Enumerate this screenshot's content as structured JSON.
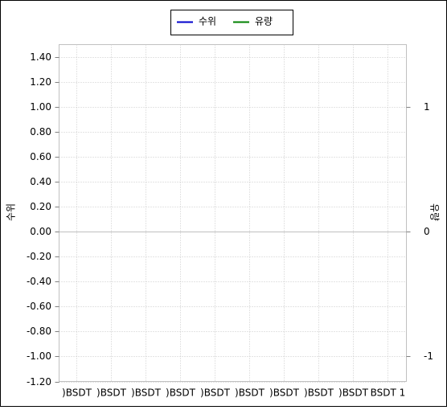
{
  "chart_data": {
    "type": "line",
    "categories": [
      ")BSDT",
      ")BSDT",
      ")BSDT",
      ")BSDT",
      ")BSDT",
      ")BSDT",
      ")BSDT",
      ")BSDT",
      ")BSDT",
      "BSDT 1"
    ],
    "series": [
      {
        "name": "수위",
        "color": "#0000cc",
        "values": [
          null,
          null,
          null,
          null,
          null,
          null,
          null,
          null,
          null,
          null
        ]
      },
      {
        "name": "유량",
        "color": "#008000",
        "axis": "y2",
        "values": [
          null,
          null,
          null,
          null,
          null,
          null,
          null,
          null,
          null,
          null
        ]
      }
    ],
    "ylabel": "수위",
    "y2label": "유량",
    "ylim": [
      -1.2,
      1.5
    ],
    "yticks": [
      {
        "value": -1.2,
        "label": "-1.20"
      },
      {
        "value": -1,
        "label": "-1.00"
      },
      {
        "value": -0.8,
        "label": "-0.80"
      },
      {
        "value": -0.6,
        "label": "-0.60"
      },
      {
        "value": -0.4,
        "label": "-0.40"
      },
      {
        "value": -0.2,
        "label": "-0.20"
      },
      {
        "value": 0,
        "label": "0.00"
      },
      {
        "value": 0.2,
        "label": "0.20"
      },
      {
        "value": 0.4,
        "label": "0.40"
      },
      {
        "value": 0.6,
        "label": "0.60"
      },
      {
        "value": 0.8,
        "label": "0.80"
      },
      {
        "value": 1,
        "label": "1.00"
      },
      {
        "value": 1.2,
        "label": "1.20"
      },
      {
        "value": 1.4,
        "label": "1.40"
      }
    ],
    "y2lim": [
      -1.2,
      1.5
    ],
    "y2ticks": [
      -1,
      0,
      1
    ],
    "grid": true,
    "legend": "top"
  }
}
